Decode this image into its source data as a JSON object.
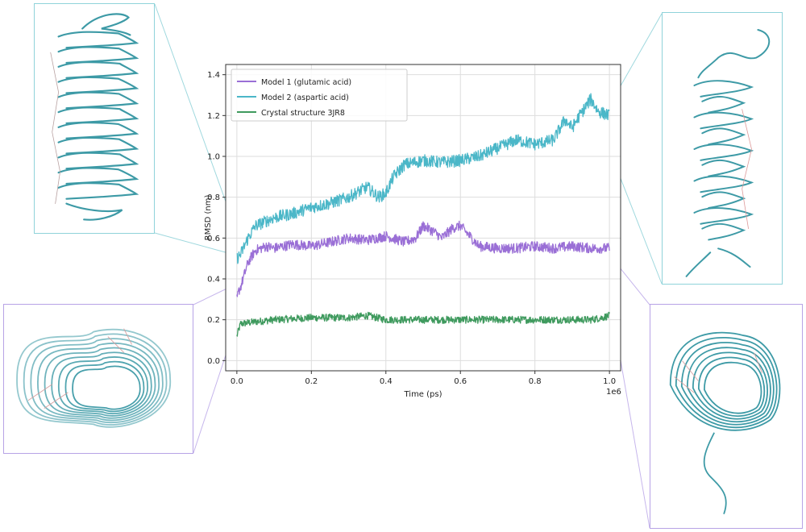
{
  "chart_data": {
    "type": "line",
    "xlabel": "Time (ps)",
    "ylabel": "RMSD (nm)",
    "x_scale_label": "1e6",
    "xlim": [
      -0.03,
      1.03
    ],
    "ylim": [
      -0.05,
      1.45
    ],
    "x_ticks": [
      "0.0",
      "0.2",
      "0.4",
      "0.6",
      "0.8",
      "1.0"
    ],
    "y_ticks": [
      "0.0",
      "0.2",
      "0.4",
      "0.6",
      "0.8",
      "1.0",
      "1.2",
      "1.4"
    ],
    "grid": true,
    "legend_position": "top-left",
    "series": [
      {
        "name": "Model 1 (glutamic acid)",
        "color": "#9a6fd6",
        "noise": 0.025,
        "x": [
          0.0,
          0.005,
          0.01,
          0.02,
          0.03,
          0.05,
          0.08,
          0.1,
          0.15,
          0.2,
          0.25,
          0.3,
          0.35,
          0.4,
          0.45,
          0.48,
          0.5,
          0.53,
          0.55,
          0.58,
          0.6,
          0.63,
          0.65,
          0.7,
          0.75,
          0.8,
          0.85,
          0.9,
          0.95,
          1.0
        ],
        "y": [
          0.3,
          0.34,
          0.36,
          0.42,
          0.48,
          0.54,
          0.56,
          0.55,
          0.57,
          0.56,
          0.58,
          0.6,
          0.59,
          0.61,
          0.58,
          0.6,
          0.66,
          0.63,
          0.6,
          0.65,
          0.66,
          0.6,
          0.56,
          0.55,
          0.55,
          0.56,
          0.55,
          0.56,
          0.55,
          0.55
        ]
      },
      {
        "name": "Model 2 (aspartic acid)",
        "color": "#4bb7c8",
        "noise": 0.03,
        "x": [
          0.0,
          0.01,
          0.03,
          0.05,
          0.1,
          0.15,
          0.2,
          0.25,
          0.3,
          0.35,
          0.38,
          0.4,
          0.42,
          0.45,
          0.5,
          0.55,
          0.6,
          0.65,
          0.7,
          0.75,
          0.8,
          0.85,
          0.88,
          0.9,
          0.92,
          0.95,
          0.97,
          1.0
        ],
        "y": [
          0.5,
          0.52,
          0.6,
          0.66,
          0.7,
          0.72,
          0.75,
          0.77,
          0.8,
          0.85,
          0.8,
          0.82,
          0.9,
          0.96,
          0.98,
          0.97,
          0.98,
          1.0,
          1.04,
          1.08,
          1.06,
          1.08,
          1.18,
          1.14,
          1.2,
          1.28,
          1.22,
          1.2
        ]
      },
      {
        "name": "Crystal structure 3JR8",
        "color": "#3f9a5e",
        "noise": 0.018,
        "x": [
          0.0,
          0.01,
          0.05,
          0.1,
          0.2,
          0.3,
          0.35,
          0.4,
          0.5,
          0.6,
          0.7,
          0.8,
          0.9,
          0.95,
          0.98,
          1.0
        ],
        "y": [
          0.12,
          0.18,
          0.19,
          0.2,
          0.21,
          0.21,
          0.22,
          0.2,
          0.2,
          0.2,
          0.2,
          0.2,
          0.2,
          0.2,
          0.21,
          0.22
        ]
      }
    ]
  },
  "insets": {
    "top_left": {
      "icon": "protein-ribbon-side-view-icon",
      "color": "#3d9aa6"
    },
    "top_right": {
      "icon": "protein-ribbon-side-view-icon",
      "color": "#3d9aa6"
    },
    "bottom_left": {
      "icon": "protein-ribbon-top-view-icon",
      "color": "#3d9aa6"
    },
    "bottom_right": {
      "icon": "protein-ribbon-top-view-icon",
      "color": "#3d9aa6"
    }
  }
}
